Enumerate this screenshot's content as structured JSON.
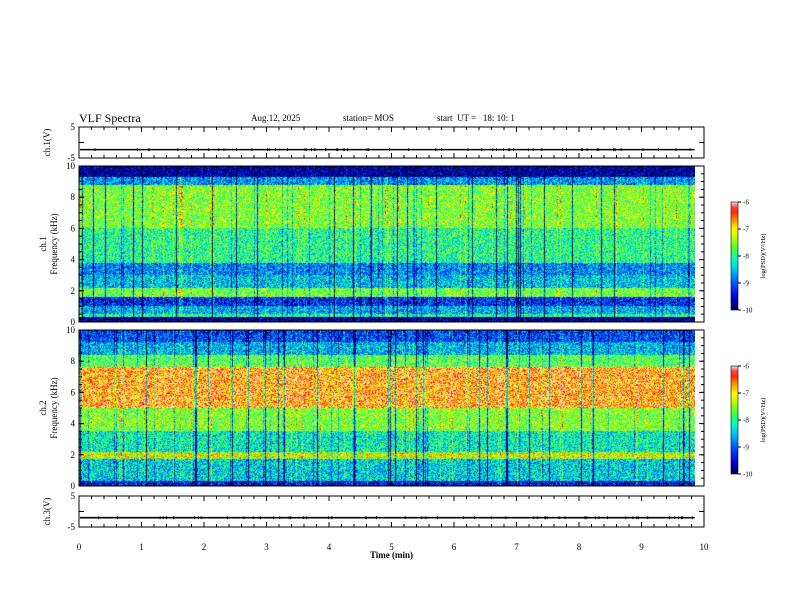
{
  "header": {
    "title": "VLF Spectra",
    "date": "Aug.12, 2025",
    "station": "station= MOS",
    "start": "start  UT =   18: 10: 1"
  },
  "chart_data": [
    {
      "type": "line",
      "panel": "ch1-voltage",
      "ylabel": "ch.1(V)",
      "ylim": [
        -5,
        5
      ],
      "yticks": [
        "5",
        "-5"
      ],
      "xlim": [
        0,
        10
      ],
      "trace_level": -2.3,
      "trace_extent_min": 9.85
    },
    {
      "type": "heatmap",
      "panel": "ch1-spectrogram",
      "ylabel_lines": [
        "ch.1",
        "Frequency (kHz)"
      ],
      "ylim": [
        0,
        10
      ],
      "yticks": [
        "0",
        "2",
        "4",
        "6",
        "8",
        "10"
      ],
      "xlim": [
        0,
        10
      ],
      "data_extent_min": 9.85,
      "colorbar": {
        "label": "log(PSD)(V²/Hz)",
        "range": [
          -10,
          -6
        ],
        "ticks": [
          "-6",
          "-7",
          "-8",
          "-9",
          "-10"
        ]
      }
    },
    {
      "type": "heatmap",
      "panel": "ch2-spectrogram",
      "ylabel_lines": [
        "ch.2",
        "Frequency (kHz)"
      ],
      "ylim": [
        0,
        10
      ],
      "yticks": [
        "0",
        "2",
        "4",
        "6",
        "8",
        "10"
      ],
      "xlim": [
        0,
        10
      ],
      "data_extent_min": 9.85,
      "colorbar": {
        "label": "log(PSD)(V²/Hz)",
        "range": [
          -10,
          -6
        ],
        "ticks": [
          "-6",
          "-7",
          "-8",
          "-9",
          "-10"
        ]
      }
    },
    {
      "type": "line",
      "panel": "ch3-voltage",
      "ylabel": "ch.3(V)",
      "ylim": [
        -5,
        5
      ],
      "yticks": [
        "5",
        "-5"
      ],
      "xlim": [
        0,
        10
      ],
      "trace_level": -2.0,
      "trace_extent_min": 9.85
    }
  ],
  "xaxis": {
    "label": "Time  (min)",
    "ticks": [
      "0",
      "1",
      "2",
      "3",
      "4",
      "5",
      "6",
      "7",
      "8",
      "9",
      "10"
    ]
  },
  "colors": {
    "colormap": [
      "#000060",
      "#0000ff",
      "#00a0ff",
      "#00ffc0",
      "#40ff40",
      "#c0ff00",
      "#ffff00",
      "#ff8000",
      "#ff0000",
      "#ffffff"
    ],
    "axis": "#000000"
  }
}
